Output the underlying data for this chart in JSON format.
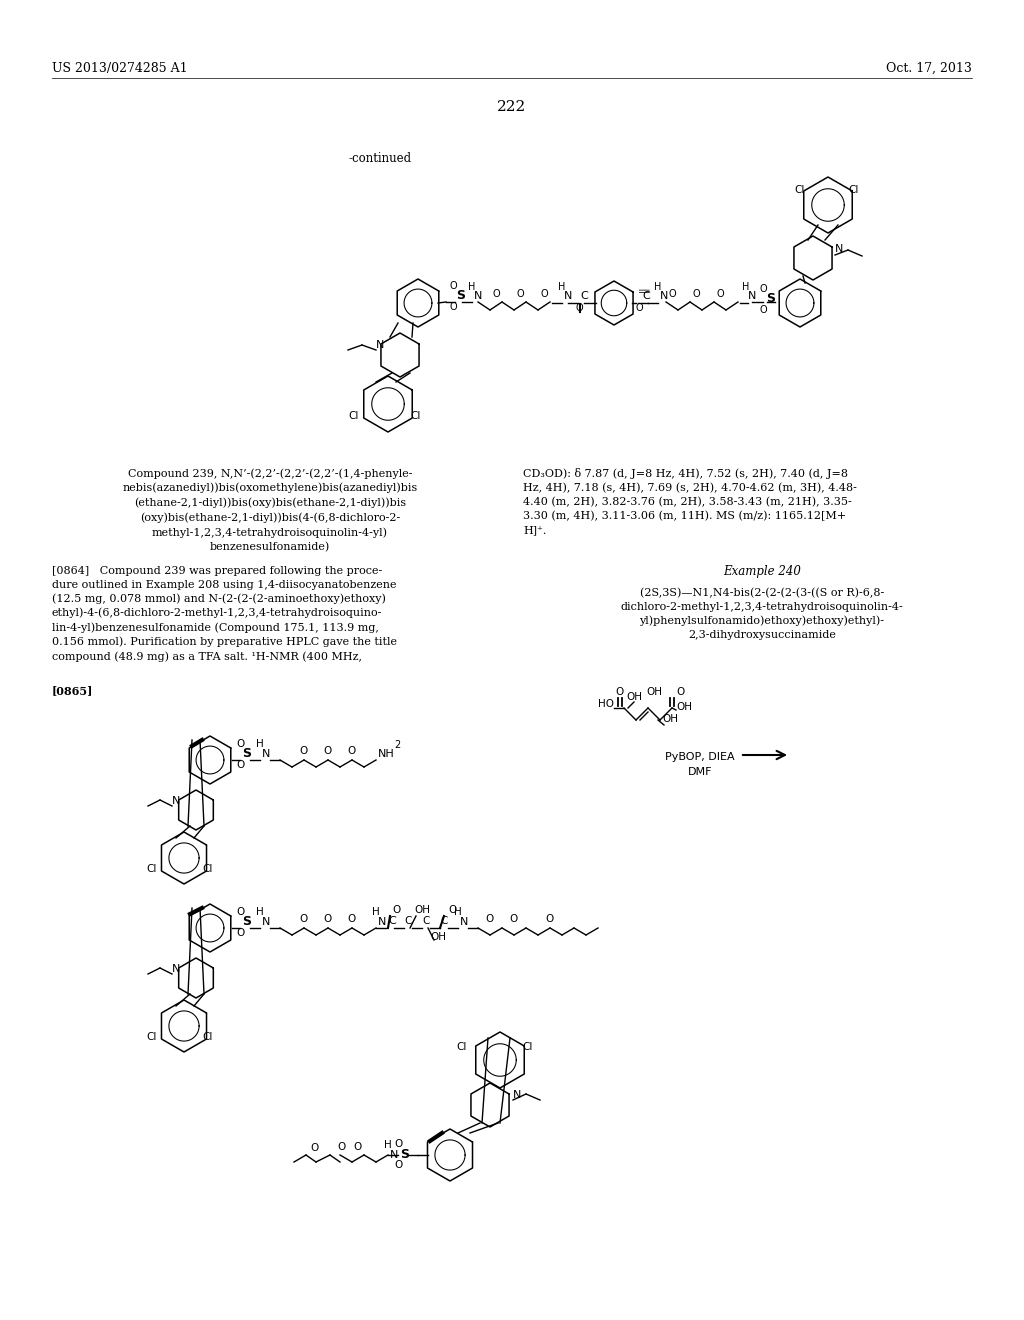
{
  "page_number": "222",
  "patent_number": "US 2013/0274285 A1",
  "date": "Oct. 17, 2013",
  "continued_label": "-continued",
  "background_color": "#ffffff",
  "text_color": "#000000",
  "compound_name_text": "Compound 239, N,N’-(2,2’-(2,2’-(2,2’-(1,4-phenyle-\nnebis(azanediyl))bis(oxomethylene)bis(azanediyl)bis\n(ethane-2,1-diyl))bis(oxy)bis(ethane-2,1-diyl))bis\n(oxy)bis(ethane-2,1-diyl))bis(4-(6,8-dichloro-2-\nmethyl-1,2,3,4-tetrahydroisoquinolin-4-yl)\nbenzenesulfonamide)",
  "left_paragraph": "[0864]   Compound 239 was prepared following the proce-\ndure outlined in Example 208 using 1,4-diisocyanatobenzene\n(12.5 mg, 0.078 mmol) and N-(2-(2-(2-aminoethoxy)ethoxy)\nethyl)-4-(6,8-dichloro-2-methyl-1,2,3,4-tetrahydroisoquino-\nlin-4-yl)benzenesulfonamide (Compound 175.1, 113.9 mg,\n0.156 mmol). Purification by preparative HPLC gave the title\ncompound (48.9 mg) as a TFA salt. ¹H-NMR (400 MHz,",
  "right_nmr_text": "CD₃OD): δ 7.87 (d, J=8 Hz, 4H), 7.52 (s, 2H), 7.40 (d, J=8\nHz, 4H), 7.18 (s, 4H), 7.69 (s, 2H), 4.70-4.62 (m, 3H), 4.48-\n4.40 (m, 2H), 3.82-3.76 (m, 2H), 3.58-3.43 (m, 21H), 3.35-\n3.30 (m, 4H), 3.11-3.06 (m, 11H). MS (m/z): 1165.12[M+\nH]⁺.",
  "example_240_header": "Example 240",
  "example_240_name": "(2S,3S)—N1,N4-bis(2-(2-(2-(3-((S or R)-6,8-\ndichloro-2-methyl-1,2,3,4-tetrahydroisoquinolin-4-\nyl)phenylsulfonamido)ethoxy)ethoxy)ethyl)-\n2,3-dihydroxysuccinamide",
  "example_240_ref": "[0865]"
}
